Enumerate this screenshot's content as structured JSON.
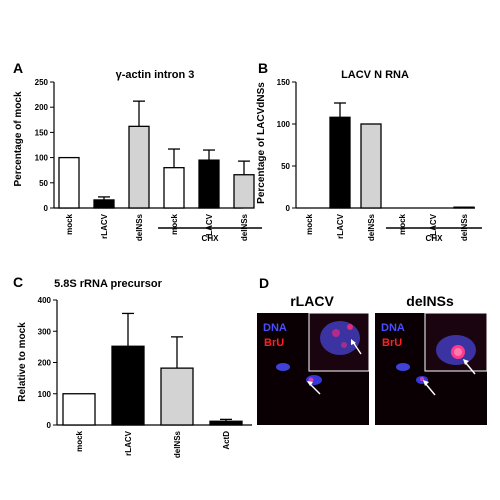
{
  "chart_data": [
    {
      "panel": "A",
      "type": "bar",
      "title": "γ-actin intron 3",
      "ylabel": "Percentage of mock",
      "ylim": [
        0,
        250
      ],
      "yticks": [
        0,
        50,
        100,
        150,
        200,
        250
      ],
      "categories": [
        "mock",
        "rLACV",
        "delNSs",
        "mock",
        "rLACV",
        "delNSs"
      ],
      "values": [
        100,
        16,
        162,
        80,
        95,
        66
      ],
      "errors": [
        0,
        6,
        50,
        37,
        20,
        27
      ],
      "colors": [
        "#ffffff",
        "#000000",
        "#d3d3d3",
        "#ffffff",
        "#000000",
        "#d3d3d3"
      ],
      "group_label": "CHX"
    },
    {
      "panel": "B",
      "type": "bar",
      "title": "LACV N RNA",
      "ylabel": "Percentage of LACVdNSs",
      "ylim": [
        0,
        150
      ],
      "yticks": [
        0,
        50,
        100,
        150
      ],
      "categories": [
        "mock",
        "rLACV",
        "delNSs",
        "mock",
        "rLACV",
        "delNSs"
      ],
      "values": [
        0,
        108,
        100,
        0,
        0,
        1
      ],
      "errors": [
        0,
        17,
        0,
        0,
        0,
        0
      ],
      "colors": [
        "#ffffff",
        "#000000",
        "#d3d3d3",
        "#ffffff",
        "#000000",
        "#d3d3d3"
      ],
      "group_label": "CHX"
    },
    {
      "panel": "C",
      "type": "bar",
      "title": "5.8S rRNA precursor",
      "ylabel": "Relative to mock",
      "ylim": [
        0,
        400
      ],
      "yticks": [
        0,
        100,
        200,
        300,
        400
      ],
      "categories": [
        "mock",
        "rLACV",
        "delNSs",
        "ActD"
      ],
      "values": [
        100,
        252,
        182,
        12
      ],
      "errors": [
        0,
        105,
        100,
        6
      ],
      "colors": [
        "#ffffff",
        "#000000",
        "#d3d3d3",
        "#000000"
      ]
    }
  ],
  "panel_d": {
    "letter": "D",
    "images": [
      {
        "title": "rLACV",
        "dna_label": "DNA",
        "bru_label": "BrU"
      },
      {
        "title": "delNSs",
        "dna_label": "DNA",
        "bru_label": "BrU"
      }
    ]
  },
  "colors": {
    "dna": "#4a4cff",
    "bru": "#ff2020",
    "micro_bg": "#0a0004"
  }
}
